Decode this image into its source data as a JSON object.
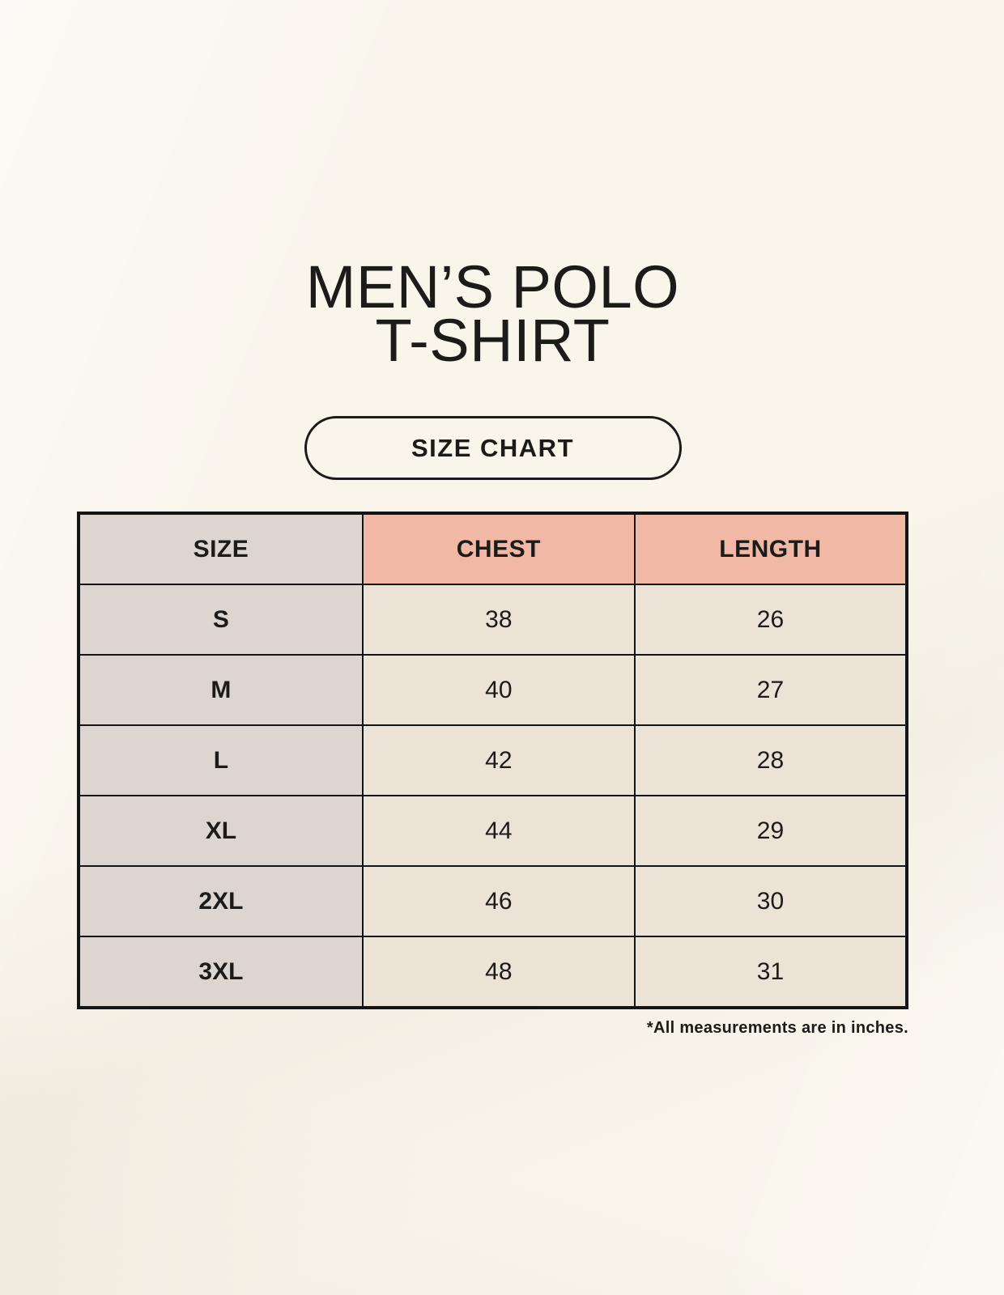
{
  "title": {
    "line1": "MEN’S POLO",
    "line2": "T-SHIRT"
  },
  "badge": {
    "label": "SIZE CHART"
  },
  "table": {
    "columns": [
      "SIZE",
      "CHEST",
      "LENGTH"
    ],
    "rows": [
      {
        "size": "S",
        "chest": "38",
        "length": "26"
      },
      {
        "size": "M",
        "chest": "40",
        "length": "27"
      },
      {
        "size": "L",
        "chest": "42",
        "length": "28"
      },
      {
        "size": "XL",
        "chest": "44",
        "length": "29"
      },
      {
        "size": "2XL",
        "chest": "46",
        "length": "30"
      },
      {
        "size": "3XL",
        "chest": "48",
        "length": "31"
      }
    ]
  },
  "footnote": "*All measurements are in inches.",
  "colors": {
    "page-bg": "#F9F5EB",
    "ink": "#1C1B1A",
    "cell-gray": "#DDD6D0",
    "cell-cream": "#EAE3D6",
    "accent-salmon": "#F0B8A5",
    "table-border": "#141414"
  }
}
